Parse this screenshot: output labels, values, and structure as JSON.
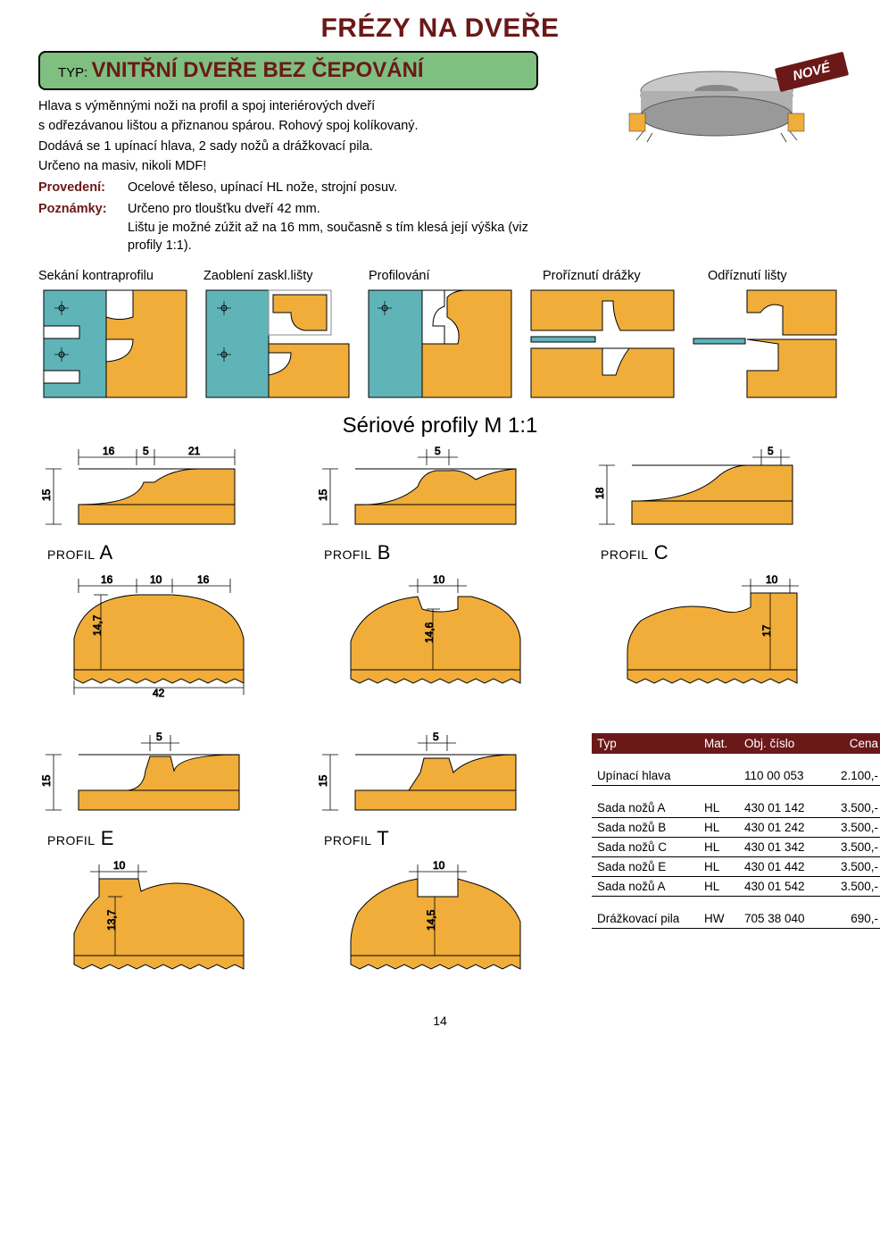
{
  "colors": {
    "brand": "#6b1818",
    "banner_bg": "#7fc080",
    "wood": "#f0ad3a",
    "wood_stroke": "#000000",
    "teal": "#5fb4b8",
    "dim_line": "#000000",
    "text": "#000000",
    "white": "#ffffff"
  },
  "header": {
    "main_title": "FRÉZY NA DVEŘE",
    "type_prefix": "TYP:",
    "type_value": "VNITŘNÍ DVEŘE BEZ ČEPOVÁNÍ",
    "badge": "NOVÉ"
  },
  "description": {
    "line1": "Hlava s výměnnými noži na profil a spoj interiérových dveří",
    "line2": "s odřezávanou lištou a přiznanou spárou. Rohový spoj kolíkovaný.",
    "line3": "Dodává se 1 upínací hlava, 2 sady nožů a drážkovací pila.",
    "line4": "Určeno na masiv, nikoli MDF!",
    "provedeni_label": "Provedení:",
    "provedeni_val": "Ocelové těleso, upínací HL nože, strojní posuv.",
    "poznamky_label": "Poznámky:",
    "poznamky_val": "Určeno pro tloušťku dveří 42 mm.",
    "poznamky_val2": "Lištu je možné zúžit až na 16 mm, současně s tím klesá její výška (viz profily 1:1)."
  },
  "operations": {
    "titles": [
      "Sekání kontraprofilu",
      "Zaoblení zaskl.lišty",
      "Profilování",
      "Proříznutí drážky",
      "Odříznutí lišty"
    ]
  },
  "section_title": "Sériové profily M 1:1",
  "profiles": {
    "A": {
      "label_small": "PROFIL",
      "label": "A",
      "dims_top": [
        "16",
        "5",
        "21"
      ],
      "dim_left": "15",
      "dims2": [
        "16",
        "10",
        "16"
      ],
      "dim2_left": "14,7",
      "dim2_bottom": "42"
    },
    "B": {
      "label_small": "PROFIL",
      "label": "B",
      "dim_top": "5",
      "dim_left": "15",
      "dim2_top": "10",
      "dim2_left": "14,6"
    },
    "C": {
      "label_small": "PROFIL",
      "label": "C",
      "dim_top": "5",
      "dim_left": "18",
      "dim2_top": "10",
      "dim2_left": "17"
    },
    "E": {
      "label_small": "PROFIL",
      "label": "E",
      "dim_top": "5",
      "dim_left": "15",
      "dim2_top": "10",
      "dim2_left": "13,7"
    },
    "T": {
      "label_small": "PROFIL",
      "label": "T",
      "dim_top": "5",
      "dim_left": "15",
      "dim2_top": "10",
      "dim2_left": "14,5"
    }
  },
  "table": {
    "headers": [
      "Typ",
      "Mat.",
      "Obj. číslo",
      "Cena"
    ],
    "groups": [
      [
        {
          "name": "Upínací hlava",
          "mat": "",
          "code": "110 00 053",
          "price": "2.100,-"
        }
      ],
      [
        {
          "name": "Sada nožů A",
          "mat": "HL",
          "code": "430 01 142",
          "price": "3.500,-"
        },
        {
          "name": "Sada nožů B",
          "mat": "HL",
          "code": "430 01 242",
          "price": "3.500,-"
        },
        {
          "name": "Sada nožů C",
          "mat": "HL",
          "code": "430 01 342",
          "price": "3.500,-"
        },
        {
          "name": "Sada nožů E",
          "mat": "HL",
          "code": "430 01 442",
          "price": "3.500,-"
        },
        {
          "name": "Sada nožů A",
          "mat": "HL",
          "code": "430 01 542",
          "price": "3.500,-"
        }
      ],
      [
        {
          "name": "Drážkovací pila",
          "mat": "HW",
          "code": "705 38 040",
          "price": "690,-"
        }
      ]
    ]
  },
  "page_number": "14"
}
